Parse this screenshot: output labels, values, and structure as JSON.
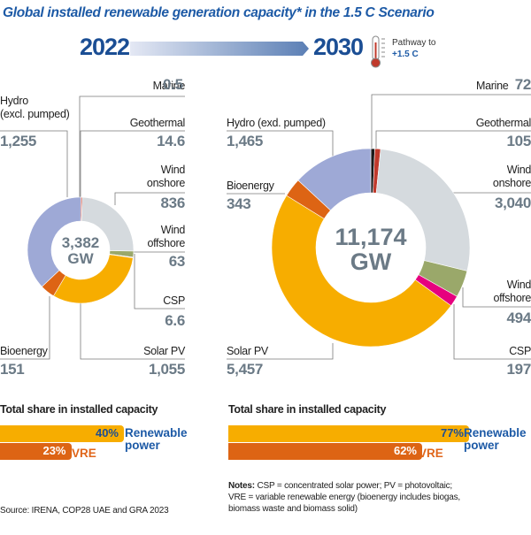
{
  "title": "Global installed renewable generation capacity* in the 1.5 C Scenario",
  "timeline": {
    "start_year": "2022",
    "end_year": "2030",
    "pathway_label": "Pathway to",
    "pathway_value": "+1.5 C",
    "icon": "thermometer-icon"
  },
  "colors": {
    "marine": "#1a1a1a",
    "geothermal": "#c0392b",
    "wind_onshore": "#d5dade",
    "wind_offshore": "#9aa86a",
    "csp": "#e6007e",
    "solar_pv": "#f7ad00",
    "bioenergy": "#dd6414",
    "hydro": "#9ea9d6",
    "renewable_bar": "#f7ad00",
    "vre_bar": "#dd6414",
    "accent_blue": "#1d5aa6"
  },
  "chart_data": [
    {
      "type": "pie",
      "variant": "donut",
      "year": "2022",
      "total_label": "3,382",
      "unit": "GW",
      "categories": [
        "Marine",
        "Geothermal",
        "Wind onshore",
        "Wind offshore",
        "CSP",
        "Solar PV",
        "Bioenergy",
        "Hydro (excl. pumped)"
      ],
      "values": [
        0.5,
        14.6,
        836,
        63,
        6.6,
        1055,
        151,
        1255
      ],
      "value_labels": [
        "0.5",
        "14.6",
        "836",
        "63",
        "6.6",
        "1,055",
        "151",
        "1,255"
      ],
      "labels": {
        "marine": "Marine",
        "geothermal": "Geothermal",
        "wind_onshore_1": "Wind",
        "wind_onshore_2": "onshore",
        "wind_offshore_1": "Wind",
        "wind_offshore_2": "offshore",
        "csp": "CSP",
        "solar_pv": "Solar PV",
        "bioenergy": "Bioenergy",
        "hydro_1": "Hydro",
        "hydro_2": "(excl. pumped)"
      }
    },
    {
      "type": "pie",
      "variant": "donut",
      "year": "2030",
      "total_label": "11,174",
      "unit": "GW",
      "categories": [
        "Marine",
        "Geothermal",
        "Wind onshore",
        "Wind offshore",
        "CSP",
        "Solar PV",
        "Bioenergy",
        "Hydro (exd. pumped)"
      ],
      "values": [
        72,
        105,
        3040,
        494,
        197,
        5457,
        343,
        1465
      ],
      "value_labels": [
        "72",
        "105",
        "3,040",
        "494",
        "197",
        "5,457",
        "343",
        "1,465"
      ],
      "labels": {
        "marine": "Marine",
        "geothermal": "Geothermal",
        "wind_onshore_1": "Wind",
        "wind_onshore_2": "onshore",
        "wind_offshore_1": "Wind",
        "wind_offshore_2": "offshore",
        "csp": "CSP",
        "solar_pv": "Solar PV",
        "bioenergy": "Bioenergy",
        "hydro": "Hydro (exd. pumped)"
      }
    },
    {
      "type": "bar",
      "orientation": "horizontal",
      "title": "Total share in installed capacity",
      "year": "2022",
      "categories": [
        "Renewable power",
        "VRE"
      ],
      "values": [
        40,
        23
      ],
      "value_labels": [
        "40%",
        "23%"
      ],
      "unit": "%"
    },
    {
      "type": "bar",
      "orientation": "horizontal",
      "title": "Total share in installed capacity",
      "year": "2030",
      "categories": [
        "Renewable power",
        "VRE"
      ],
      "values": [
        77,
        62
      ],
      "value_labels": [
        "77%",
        "62%"
      ],
      "unit": "%"
    }
  ],
  "share_legend": {
    "renewable_1": "Renewable",
    "renewable_2": "power",
    "vre": "VRE"
  },
  "notes": {
    "label": "Notes:",
    "line1": " CSP = concentrated solar power; PV = photovoltaic;",
    "line2": "VRE = variable renewable energy (bioenergy includes biogas,",
    "line3": "biomass waste and biomass solid)"
  },
  "source": "Source: IRENA, COP28 UAE and GRA 2023"
}
